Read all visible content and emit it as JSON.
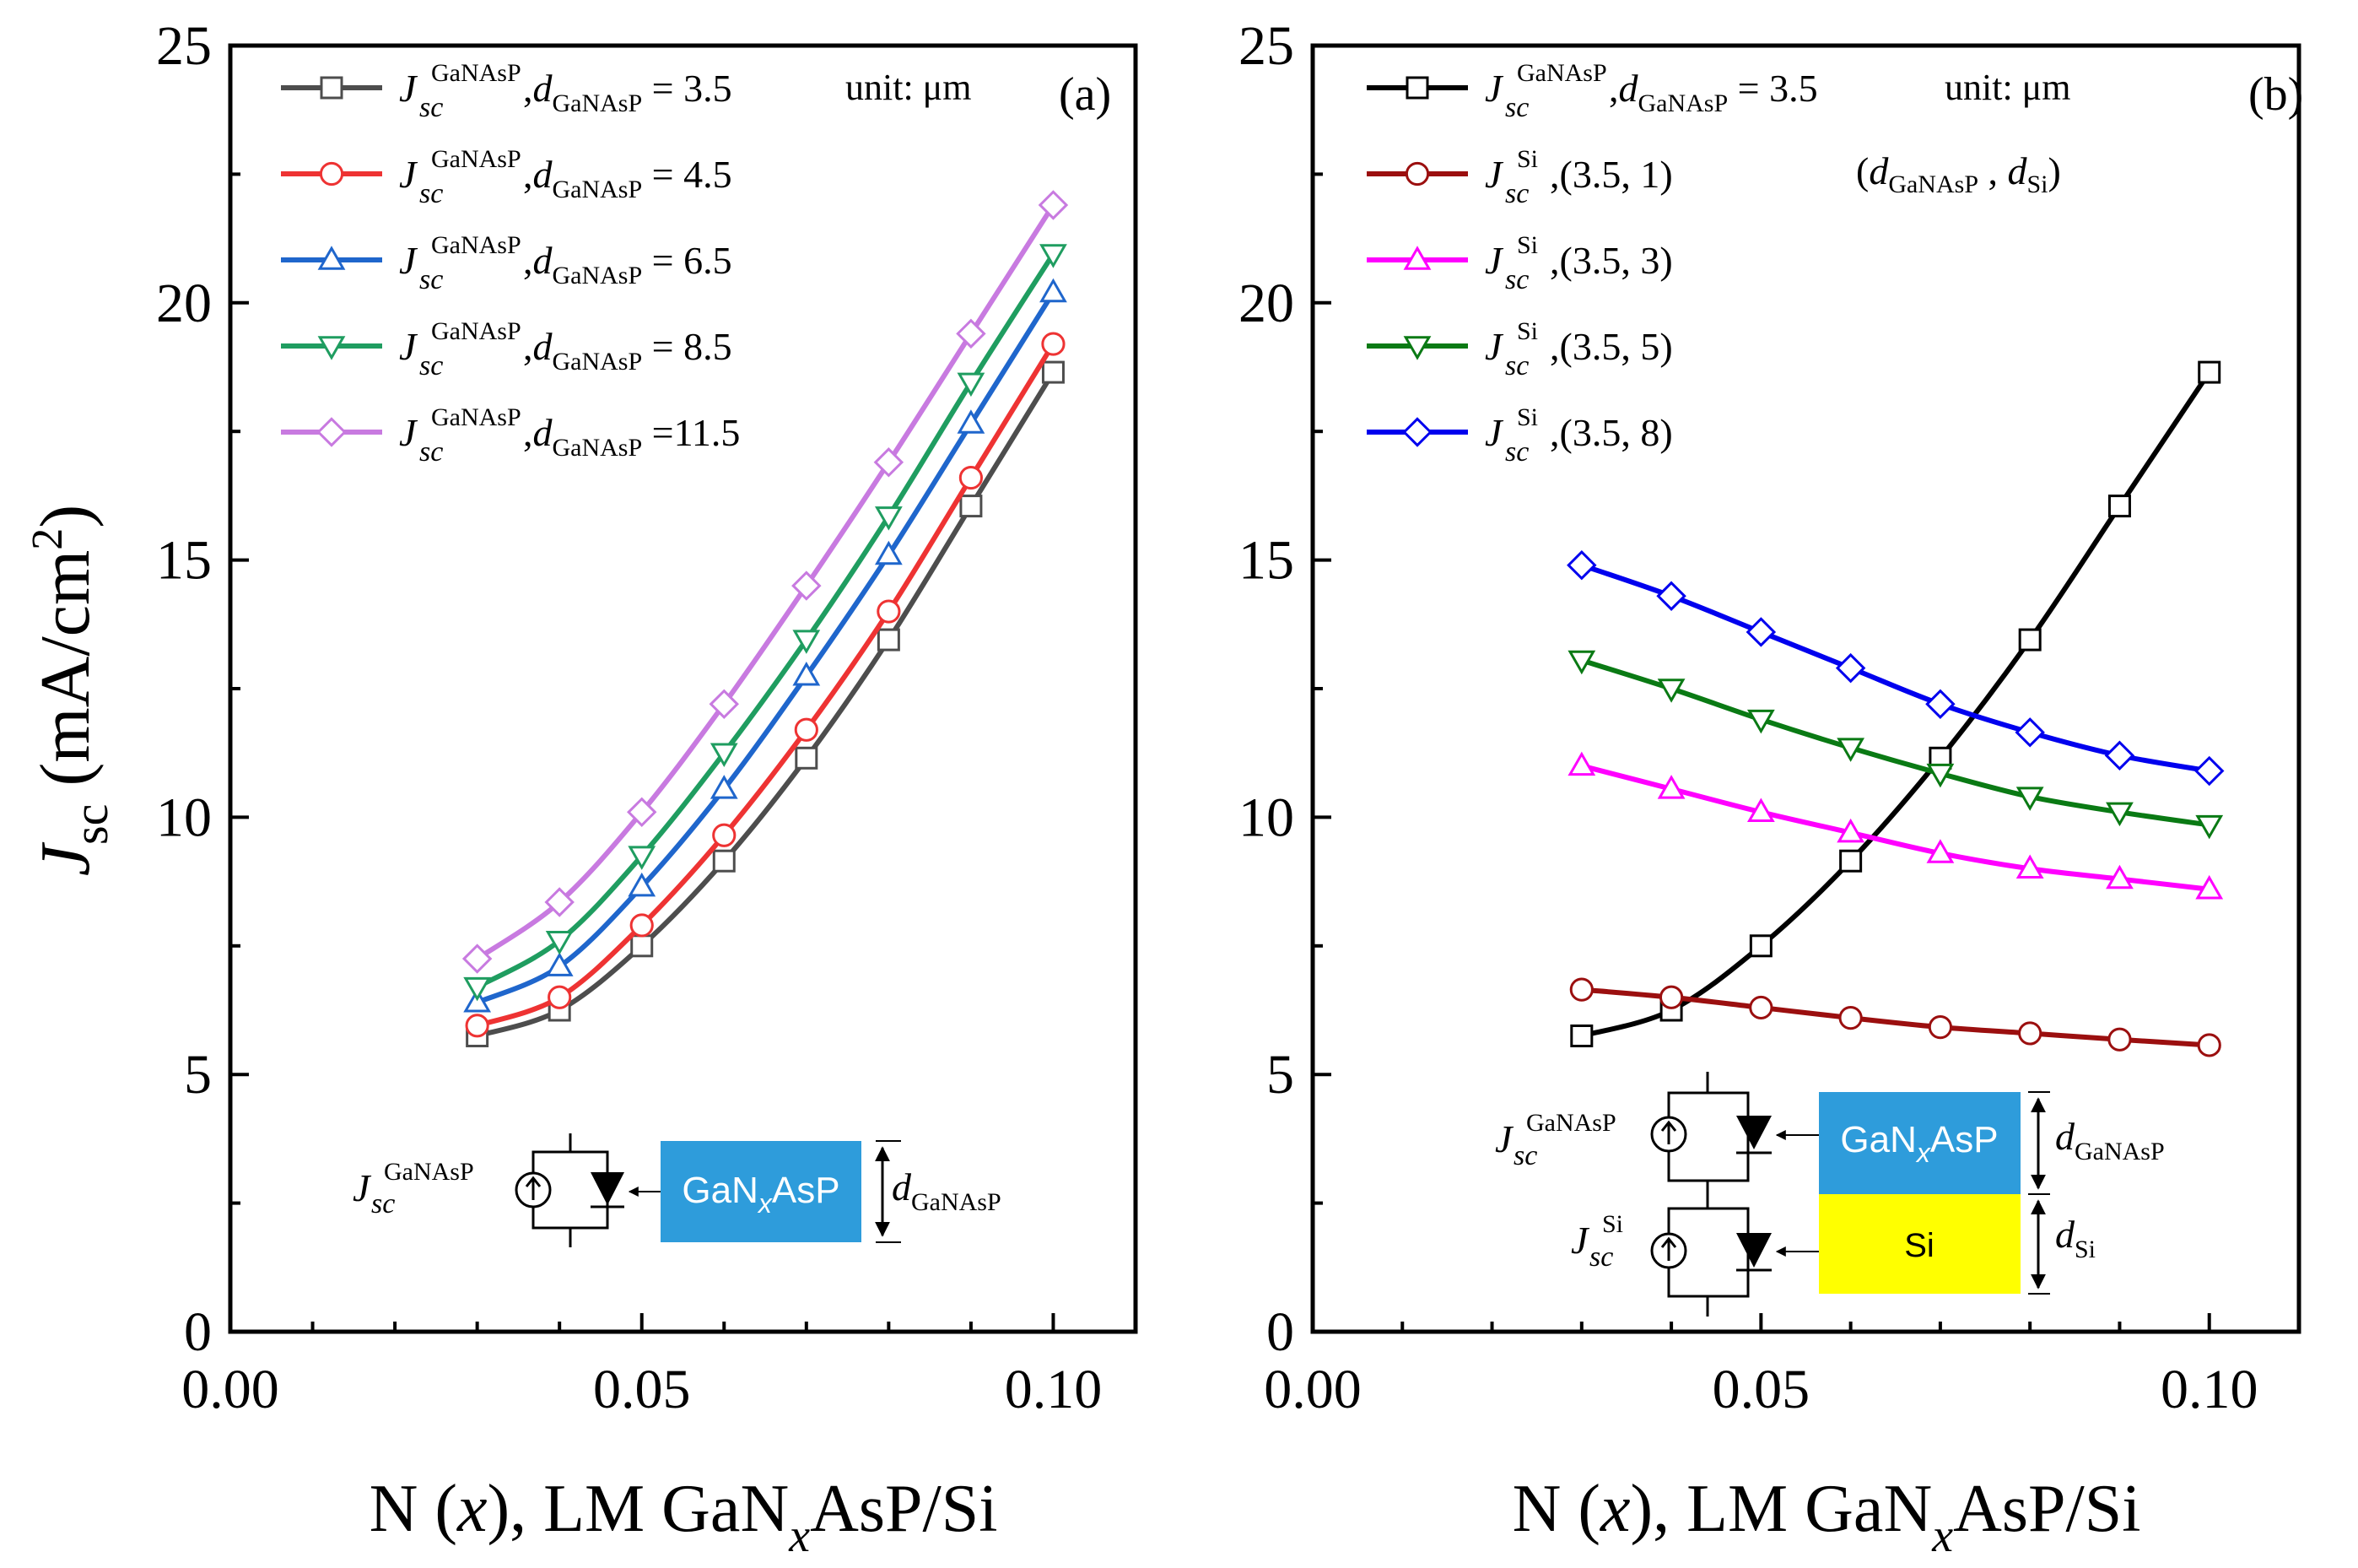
{
  "chart_data": [
    {
      "type": "line",
      "panel_label": "(a)",
      "unit_note": "unit: μm",
      "ylabel_main": "J",
      "ylabel_sub": "sc",
      "ylabel_units": "(mA/cm",
      "ylabel_power": "2",
      "ylabel_close": ")",
      "xlabel": "N (x), LM GaNxAsP/Si",
      "xlabel_parts": {
        "pre": "N (",
        "var": "x",
        "mid": "), LM GaN",
        "sub": "x",
        "post": "AsP/Si"
      },
      "xlim": [
        0.0,
        0.11
      ],
      "ylim": [
        0,
        25
      ],
      "xticks": [
        "0.00",
        "0.05",
        "0.10"
      ],
      "xtick_values": [
        0.0,
        0.05,
        0.1
      ],
      "yticks": [
        "0",
        "5",
        "10",
        "15",
        "20",
        "25"
      ],
      "ytick_values": [
        0,
        5,
        10,
        15,
        20,
        25
      ],
      "x": [
        0.03,
        0.04,
        0.05,
        0.06,
        0.07,
        0.08,
        0.09,
        0.1
      ],
      "series": [
        {
          "name": "Jsc GaNAsP, dGaNAsP = 3.5",
          "J": "J",
          "sub": "sc",
          "sup": "GaNAsP",
          "rest_main": ",d",
          "rest_sub": "GaNAsP",
          "rest_tail": " = 3.5",
          "color": "#4d4d4d",
          "marker": "square",
          "values": [
            5.75,
            6.25,
            7.5,
            9.15,
            11.15,
            13.45,
            16.05,
            18.65
          ]
        },
        {
          "name": "Jsc GaNAsP, dGaNAsP = 4.5",
          "J": "J",
          "sub": "sc",
          "sup": "GaNAsP",
          "rest_main": ",d",
          "rest_sub": "GaNAsP",
          "rest_tail": " = 4.5",
          "color": "#ee3333",
          "marker": "circle",
          "values": [
            5.95,
            6.5,
            7.9,
            9.65,
            11.7,
            14.0,
            16.6,
            19.2
          ]
        },
        {
          "name": "Jsc GaNAsP, dGaNAsP = 6.5",
          "J": "J",
          "sub": "sc",
          "sup": "GaNAsP",
          "rest_main": ",d",
          "rest_sub": "GaNAsP",
          "rest_tail": " = 6.5",
          "color": "#1f66cc",
          "marker": "triangle-up",
          "values": [
            6.4,
            7.1,
            8.65,
            10.55,
            12.75,
            15.1,
            17.65,
            20.2
          ]
        },
        {
          "name": "Jsc GaNAsP, dGaNAsP = 8.5",
          "J": "J",
          "sub": "sc",
          "sup": "GaNAsP",
          "rest_main": ",d",
          "rest_sub": "GaNAsP",
          "rest_tail": " = 8.5",
          "color": "#1f9d60",
          "marker": "triangle-down",
          "values": [
            6.7,
            7.6,
            9.25,
            11.25,
            13.45,
            15.85,
            18.45,
            20.95
          ]
        },
        {
          "name": "Jsc GaNAsP, dGaNAsP = 11.5",
          "J": "J",
          "sub": "sc",
          "sup": "GaNAsP",
          "rest_main": ",d",
          "rest_sub": "GaNAsP",
          "rest_tail": " =11.5",
          "color": "#c87ae0",
          "marker": "diamond",
          "values": [
            7.25,
            8.35,
            10.1,
            12.2,
            14.5,
            16.9,
            19.4,
            21.9
          ]
        }
      ],
      "inset": {
        "sup": "GaNAsP",
        "sub": "sc",
        "J": "J",
        "block_label_pre": "GaN",
        "block_label_sub": "x",
        "block_label_post": "AsP",
        "block_color": "#2e9cdb",
        "dim_main": "d",
        "dim_sub": "GaNAsP"
      }
    },
    {
      "type": "line",
      "panel_label": "(b)",
      "unit_note": "unit: μm",
      "pair_note_open": "(",
      "pair_note_d1": "d",
      "pair_note_d1_sub": "GaNAsP",
      "pair_note_sep": " , ",
      "pair_note_d2": "d",
      "pair_note_d2_sub": "Si",
      "pair_note_close": ")",
      "xlabel": "N (x), LM GaNxAsP/Si",
      "xlabel_parts": {
        "pre": "N (",
        "var": "x",
        "mid": "), LM GaN",
        "sub": "x",
        "post": "AsP/Si"
      },
      "xlim": [
        0.0,
        0.11
      ],
      "ylim": [
        0,
        25
      ],
      "xticks": [
        "0.00",
        "0.05",
        "0.10"
      ],
      "xtick_values": [
        0.0,
        0.05,
        0.1
      ],
      "yticks": [
        "0",
        "5",
        "10",
        "15",
        "20",
        "25"
      ],
      "ytick_values": [
        0,
        5,
        10,
        15,
        20,
        25
      ],
      "x": [
        0.03,
        0.04,
        0.05,
        0.06,
        0.07,
        0.08,
        0.09,
        0.1
      ],
      "series": [
        {
          "name": "Jsc GaNAsP, dGaNAsP = 3.5",
          "J": "J",
          "sub": "sc",
          "sup": "GaNAsP",
          "rest_main": ",d",
          "rest_sub": "GaNAsP",
          "rest_tail": " = 3.5",
          "color": "#000000",
          "marker": "square",
          "values": [
            5.75,
            6.25,
            7.5,
            9.15,
            11.15,
            13.45,
            16.05,
            18.65
          ]
        },
        {
          "name": "Jsc Si, (3.5, 1)",
          "J": "J",
          "sub": "sc",
          "sup": "Si",
          "rest_main": ",(3.5, 1)",
          "rest_sub": "",
          "rest_tail": "",
          "color": "#9b0f0f",
          "marker": "circle",
          "values": [
            6.65,
            6.5,
            6.3,
            6.1,
            5.92,
            5.8,
            5.68,
            5.57
          ]
        },
        {
          "name": "Jsc Si, (3.5, 3)",
          "J": "J",
          "sub": "sc",
          "sup": "Si",
          "rest_main": ",(3.5, 3)",
          "rest_sub": "",
          "rest_tail": "",
          "color": "#ff00ff",
          "marker": "triangle-up",
          "values": [
            11.0,
            10.55,
            10.1,
            9.7,
            9.3,
            9.0,
            8.8,
            8.6
          ]
        },
        {
          "name": "Jsc Si, (3.5, 5)",
          "J": "J",
          "sub": "sc",
          "sup": "Si",
          "rest_main": ",(3.5, 5)",
          "rest_sub": "",
          "rest_tail": "",
          "color": "#0a7a14",
          "marker": "triangle-down",
          "values": [
            13.05,
            12.5,
            11.9,
            11.35,
            10.85,
            10.4,
            10.1,
            9.85
          ]
        },
        {
          "name": "Jsc Si, (3.5, 8)",
          "J": "J",
          "sub": "sc",
          "sup": "Si",
          "rest_main": ",(3.5, 8)",
          "rest_sub": "",
          "rest_tail": "",
          "color": "#0000ee",
          "marker": "diamond",
          "values": [
            14.9,
            14.3,
            13.6,
            12.9,
            12.2,
            11.65,
            11.2,
            10.9
          ]
        }
      ],
      "inset": {
        "J": "J",
        "sub": "sc",
        "sup_top": "GaNAsP",
        "sup_bottom": "Si",
        "block_top_pre": "GaN",
        "block_top_sub": "x",
        "block_top_post": "AsP",
        "block_top_color": "#2e9cdb",
        "block_bottom_label": "Si",
        "block_bottom_color": "#ffff00",
        "dim_top_main": "d",
        "dim_top_sub": "GaNAsP",
        "dim_bottom_main": "d",
        "dim_bottom_sub": "Si"
      }
    }
  ]
}
